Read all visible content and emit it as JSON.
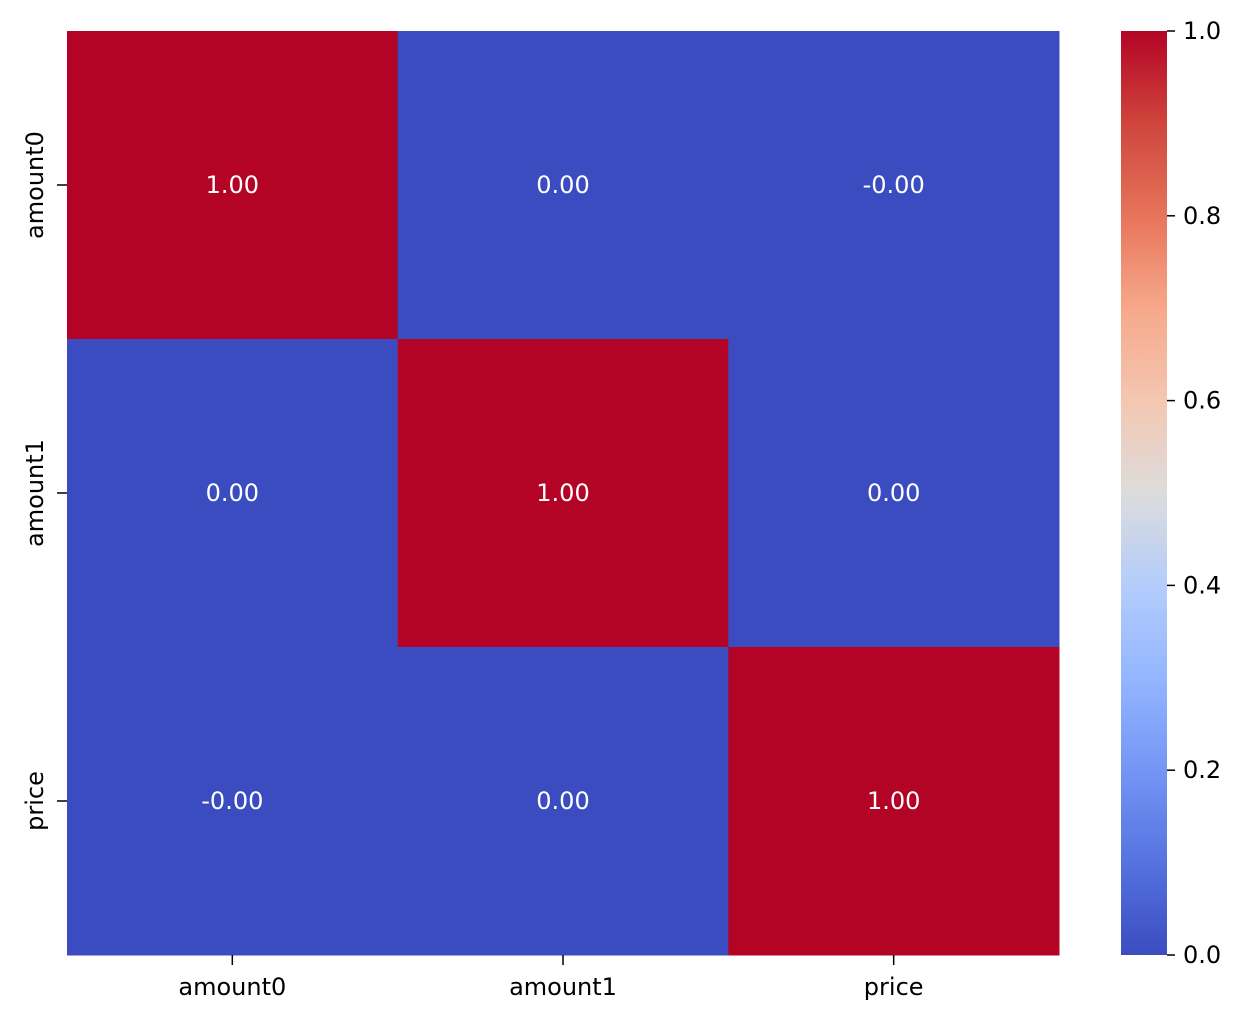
{
  "chart_data": {
    "type": "heatmap",
    "title": "",
    "xlabel": "",
    "ylabel": "",
    "x_categories": [
      "amount0",
      "amount1",
      "price"
    ],
    "y_categories": [
      "amount0",
      "amount1",
      "price"
    ],
    "values": [
      [
        1.0,
        0.0,
        -0.0
      ],
      [
        0.0,
        1.0,
        0.0
      ],
      [
        -0.0,
        0.0,
        1.0
      ]
    ],
    "annotations": [
      [
        "1.00",
        "0.00",
        "-0.00"
      ],
      [
        "0.00",
        "1.00",
        "0.00"
      ],
      [
        "-0.00",
        "0.00",
        "1.00"
      ]
    ],
    "colormap": "coolwarm",
    "colorbar": {
      "range": [
        0.0,
        1.0
      ],
      "ticks": [
        0.0,
        0.2,
        0.4,
        0.6,
        0.8,
        1.0
      ],
      "tick_labels": [
        "0.0",
        "0.2",
        "0.4",
        "0.6",
        "0.8",
        "1.0"
      ]
    },
    "colors": {
      "low": "#3b4cc0",
      "high": "#b40426",
      "annotation_text": "#ffffff",
      "axis_text": "#000000"
    }
  }
}
